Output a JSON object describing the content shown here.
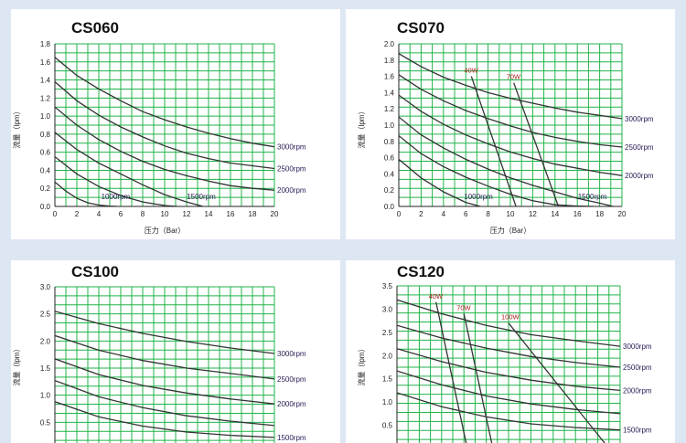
{
  "charts": [
    {
      "id": "cs060",
      "title": "CS060",
      "xlabel": "压力（Bar）",
      "ylabel": "流量（lpm）",
      "xticks": [
        "0",
        "2",
        "4",
        "6",
        "8",
        "10",
        "12",
        "14",
        "16",
        "18",
        "20"
      ],
      "yticks": [
        "0.0",
        "0.2",
        "0.4",
        "0.6",
        "0.8",
        "1.0",
        "1.2",
        "1.4",
        "1.6",
        "1.8"
      ]
    },
    {
      "id": "cs070",
      "title": "CS070",
      "xlabel": "压力（Bar）",
      "ylabel": "流量（lpm）",
      "xticks": [
        "0",
        "2",
        "4",
        "6",
        "8",
        "10",
        "12",
        "14",
        "16",
        "18",
        "20"
      ],
      "yticks": [
        "0.0",
        "0.2",
        "0.4",
        "0.6",
        "0.8",
        "1.0",
        "1.2",
        "1.4",
        "1.6",
        "1.8",
        "2.0"
      ]
    },
    {
      "id": "cs100",
      "title": "CS100",
      "xlabel": "",
      "ylabel": "流量（lpm）",
      "xticks": [],
      "yticks": [
        "0.5",
        "1.0",
        "1.5",
        "2.0",
        "2.5",
        "3.0"
      ]
    },
    {
      "id": "cs120",
      "title": "CS120",
      "xlabel": "",
      "ylabel": "流量（lpm）",
      "xticks": [],
      "yticks": [
        "0.5",
        "1.0",
        "1.5",
        "2.0",
        "2.5",
        "3.0",
        "3.5"
      ]
    }
  ],
  "chart_data": [
    {
      "type": "line",
      "title": "CS060",
      "xlabel": "压力（Bar）",
      "ylabel": "流量（lpm）",
      "xlim": [
        0,
        20
      ],
      "ylim": [
        0,
        1.8
      ],
      "grid": true,
      "series": [
        {
          "name": "3000rpm",
          "x": [
            0,
            2,
            4,
            6,
            8,
            10,
            12,
            14,
            16,
            18,
            20
          ],
          "y": [
            1.65,
            1.45,
            1.3,
            1.17,
            1.05,
            0.96,
            0.88,
            0.81,
            0.75,
            0.7,
            0.66
          ]
        },
        {
          "name": "2500rpm",
          "x": [
            0,
            2,
            4,
            6,
            8,
            10,
            12,
            14,
            16,
            18,
            20
          ],
          "y": [
            1.38,
            1.17,
            1.01,
            0.88,
            0.77,
            0.67,
            0.59,
            0.53,
            0.48,
            0.45,
            0.42
          ]
        },
        {
          "name": "2000rpm",
          "x": [
            0,
            2,
            4,
            6,
            8,
            10,
            12,
            14,
            16,
            18,
            20
          ],
          "y": [
            1.1,
            0.9,
            0.74,
            0.61,
            0.5,
            0.41,
            0.34,
            0.28,
            0.23,
            0.2,
            0.18
          ]
        },
        {
          "name": "1500rpm",
          "x": [
            0,
            2,
            4,
            6,
            8,
            10,
            12,
            13.5
          ],
          "y": [
            0.82,
            0.63,
            0.48,
            0.36,
            0.24,
            0.13,
            0.05,
            0.0
          ]
        },
        {
          "name": "",
          "x": [
            0,
            2,
            4,
            6,
            8,
            10,
            11.2
          ],
          "y": [
            0.55,
            0.36,
            0.22,
            0.12,
            0.05,
            0.01,
            0.0
          ]
        },
        {
          "name": "1000rpm",
          "x": [
            0,
            1,
            2,
            3,
            4,
            5,
            5.7
          ],
          "y": [
            0.27,
            0.17,
            0.09,
            0.04,
            0.015,
            0.003,
            0.0
          ]
        }
      ]
    },
    {
      "type": "line",
      "title": "CS070",
      "xlabel": "压力（Bar）",
      "ylabel": "流量（lpm）",
      "xlim": [
        0,
        20
      ],
      "ylim": [
        0,
        2.0
      ],
      "grid": true,
      "series": [
        {
          "name": "3000rpm",
          "x": [
            0,
            2,
            4,
            6,
            8,
            10,
            12,
            14,
            16,
            18,
            20
          ],
          "y": [
            1.88,
            1.72,
            1.59,
            1.49,
            1.4,
            1.33,
            1.27,
            1.21,
            1.16,
            1.12,
            1.08
          ]
        },
        {
          "name": "2500rpm",
          "x": [
            0,
            2,
            4,
            6,
            8,
            10,
            12,
            14,
            16,
            18,
            20
          ],
          "y": [
            1.62,
            1.44,
            1.3,
            1.18,
            1.08,
            0.99,
            0.91,
            0.85,
            0.8,
            0.76,
            0.73
          ]
        },
        {
          "name": "2000rpm",
          "x": [
            0,
            2,
            4,
            6,
            8,
            10,
            12,
            14,
            16,
            18,
            20
          ],
          "y": [
            1.37,
            1.17,
            1.01,
            0.88,
            0.77,
            0.67,
            0.59,
            0.52,
            0.47,
            0.42,
            0.38
          ]
        },
        {
          "name": "",
          "x": [
            0,
            2,
            4,
            6,
            8,
            10,
            12,
            14,
            16,
            18,
            19.2
          ],
          "y": [
            1.1,
            0.88,
            0.72,
            0.58,
            0.46,
            0.35,
            0.26,
            0.18,
            0.1,
            0.04,
            0.0
          ]
        },
        {
          "name": "1500rpm",
          "x": [
            0,
            2,
            4,
            6,
            8,
            10,
            12,
            14,
            16,
            17.5
          ],
          "y": [
            0.87,
            0.65,
            0.49,
            0.36,
            0.25,
            0.15,
            0.07,
            0.02,
            0.005,
            0.0
          ]
        },
        {
          "name": "1000rpm",
          "x": [
            0,
            2,
            4,
            6,
            7.3
          ],
          "y": [
            0.58,
            0.35,
            0.18,
            0.05,
            0.0
          ]
        },
        {
          "name": "40W",
          "x": [
            6.5,
            10.5
          ],
          "y": [
            1.6,
            0.0
          ]
        },
        {
          "name": "70W",
          "x": [
            10.3,
            14.3
          ],
          "y": [
            1.52,
            0.0
          ]
        }
      ]
    },
    {
      "type": "line",
      "title": "CS100",
      "ylabel": "流量（lpm）",
      "xlim": [
        0,
        20
      ],
      "ylim": [
        0,
        3.0
      ],
      "grid": true,
      "series": [
        {
          "name": "3000rpm",
          "x": [
            0,
            4,
            8,
            12,
            16,
            20
          ],
          "y": [
            2.55,
            2.32,
            2.14,
            1.99,
            1.87,
            1.77
          ]
        },
        {
          "name": "2500rpm",
          "x": [
            0,
            4,
            8,
            12,
            16,
            20
          ],
          "y": [
            2.1,
            1.83,
            1.64,
            1.5,
            1.4,
            1.3
          ]
        },
        {
          "name": "2000rpm",
          "x": [
            0,
            4,
            8,
            12,
            16,
            20
          ],
          "y": [
            1.67,
            1.38,
            1.18,
            1.04,
            0.93,
            0.84
          ]
        },
        {
          "name": "",
          "x": [
            0,
            4,
            8,
            12,
            16,
            20
          ],
          "y": [
            1.27,
            0.97,
            0.77,
            0.62,
            0.52,
            0.44
          ]
        },
        {
          "name": "1500rpm",
          "x": [
            0,
            4,
            8,
            12,
            16,
            20
          ],
          "y": [
            0.88,
            0.6,
            0.43,
            0.32,
            0.26,
            0.22
          ]
        }
      ]
    },
    {
      "type": "line",
      "title": "CS120",
      "ylabel": "流量（lpm）",
      "xlim": [
        0,
        20
      ],
      "ylim": [
        0,
        3.5
      ],
      "grid": true,
      "series": [
        {
          "name": "3000rpm",
          "x": [
            0,
            4,
            8,
            12,
            16,
            20
          ],
          "y": [
            3.2,
            2.9,
            2.65,
            2.45,
            2.32,
            2.2
          ]
        },
        {
          "name": "2500rpm",
          "x": [
            0,
            4,
            8,
            12,
            16,
            20
          ],
          "y": [
            2.65,
            2.38,
            2.16,
            1.98,
            1.85,
            1.75
          ]
        },
        {
          "name": "2000rpm",
          "x": [
            0,
            4,
            8,
            12,
            16,
            20
          ],
          "y": [
            2.15,
            1.87,
            1.64,
            1.47,
            1.34,
            1.25
          ]
        },
        {
          "name": "",
          "x": [
            0,
            4,
            8,
            12,
            16,
            20
          ],
          "y": [
            1.67,
            1.37,
            1.13,
            0.96,
            0.84,
            0.75
          ]
        },
        {
          "name": "1500rpm",
          "x": [
            0,
            4,
            8,
            12,
            16,
            20
          ],
          "y": [
            1.2,
            0.9,
            0.68,
            0.53,
            0.45,
            0.4
          ]
        },
        {
          "name": "40W",
          "x": [
            3.5,
            6.3
          ],
          "y": [
            3.15,
            0.0
          ]
        },
        {
          "name": "70W",
          "x": [
            6.0,
            8.6
          ],
          "y": [
            2.9,
            0.0
          ]
        },
        {
          "name": "100W",
          "x": [
            10.0,
            19.0
          ],
          "y": [
            2.7,
            0.0
          ]
        }
      ]
    }
  ]
}
